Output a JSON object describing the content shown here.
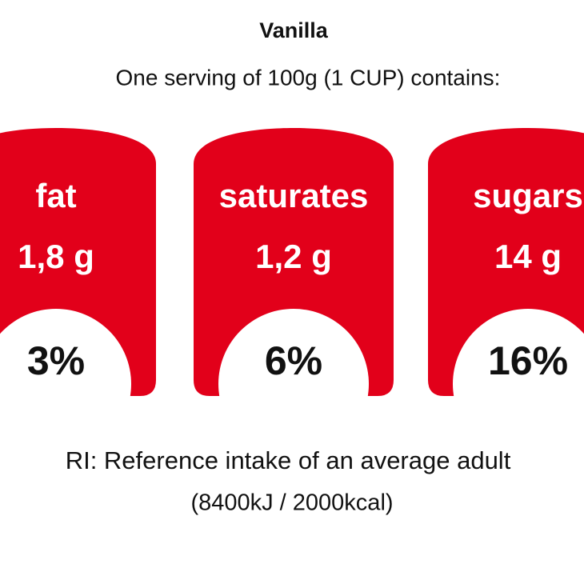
{
  "title": "Vanilla",
  "subtitle": "One serving of 100g (1 CUP) contains:",
  "nutrients": [
    {
      "name": "fat",
      "amount": "1,8 g",
      "percent": "3%"
    },
    {
      "name": "saturates",
      "amount": "1,2 g",
      "percent": "6%"
    },
    {
      "name": "sugars",
      "amount": "14 g",
      "percent": "16%"
    }
  ],
  "footer": [
    "RI: Reference intake of an average adult",
    "(8400kJ / 2000kcal)"
  ]
}
